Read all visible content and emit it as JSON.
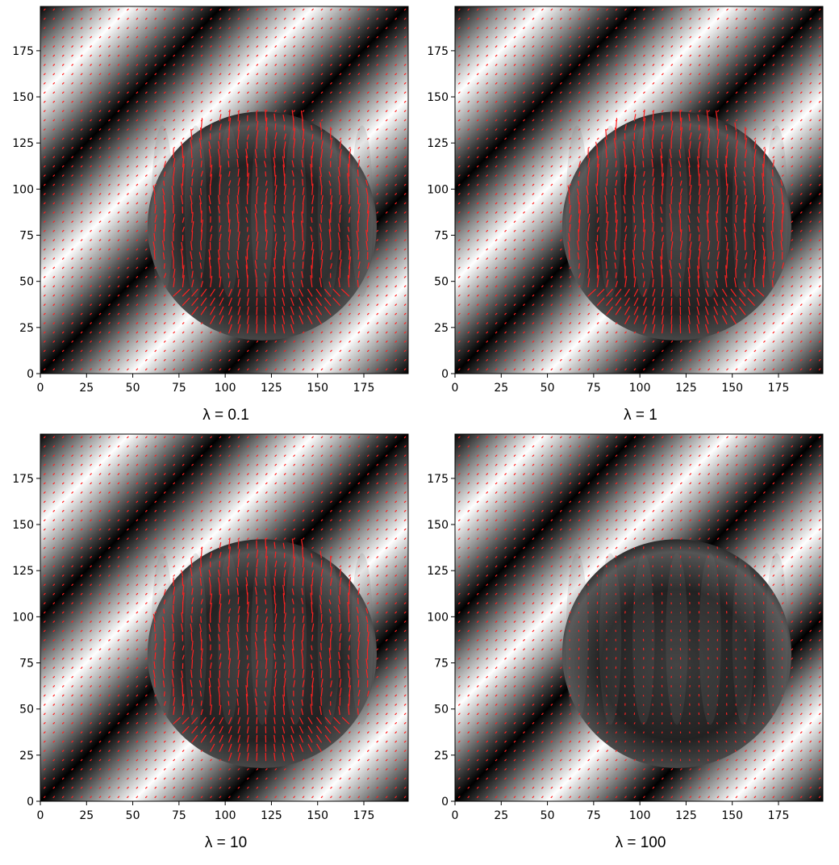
{
  "chart_data": [
    {
      "type": "heatmap",
      "subtype": "image-with-quiver-overlay",
      "caption": "λ = 0.1",
      "xlim": [
        0,
        199
      ],
      "ylim": [
        0,
        199
      ],
      "xticks": [
        0,
        25,
        50,
        75,
        100,
        125,
        150,
        175
      ],
      "yticks": [
        0,
        25,
        50,
        75,
        100,
        125,
        150,
        175
      ],
      "grid": false,
      "background": "diagonal sinusoidal grayscale stripes",
      "circle": {
        "center": [
          120,
          80
        ],
        "radius": 62
      },
      "vector_color": "#ff2020",
      "vector_strength": 1.0
    },
    {
      "type": "heatmap",
      "subtype": "image-with-quiver-overlay",
      "caption": "λ = 1",
      "xlim": [
        0,
        199
      ],
      "ylim": [
        0,
        199
      ],
      "xticks": [
        0,
        25,
        50,
        75,
        100,
        125,
        150,
        175
      ],
      "yticks": [
        0,
        25,
        50,
        75,
        100,
        125,
        150,
        175
      ],
      "grid": false,
      "background": "diagonal sinusoidal grayscale stripes",
      "circle": {
        "center": [
          120,
          80
        ],
        "radius": 62
      },
      "vector_color": "#ff2020",
      "vector_strength": 1.0
    },
    {
      "type": "heatmap",
      "subtype": "image-with-quiver-overlay",
      "caption": "λ = 10",
      "xlim": [
        0,
        199
      ],
      "ylim": [
        0,
        199
      ],
      "xticks": [
        0,
        25,
        50,
        75,
        100,
        125,
        150,
        175
      ],
      "yticks": [
        0,
        25,
        50,
        75,
        100,
        125,
        150,
        175
      ],
      "grid": false,
      "background": "diagonal sinusoidal grayscale stripes",
      "circle": {
        "center": [
          120,
          80
        ],
        "radius": 62
      },
      "vector_color": "#ff2020",
      "vector_strength": 0.9
    },
    {
      "type": "heatmap",
      "subtype": "image-with-quiver-overlay",
      "caption": "λ = 100",
      "xlim": [
        0,
        199
      ],
      "ylim": [
        0,
        199
      ],
      "xticks": [
        0,
        25,
        50,
        75,
        100,
        125,
        150,
        175
      ],
      "yticks": [
        0,
        25,
        50,
        75,
        100,
        125,
        150,
        175
      ],
      "grid": false,
      "background": "diagonal sinusoidal grayscale stripes",
      "circle": {
        "center": [
          120,
          80
        ],
        "radius": 62
      },
      "vector_color": "#ff2020",
      "vector_strength": 0.15
    }
  ]
}
